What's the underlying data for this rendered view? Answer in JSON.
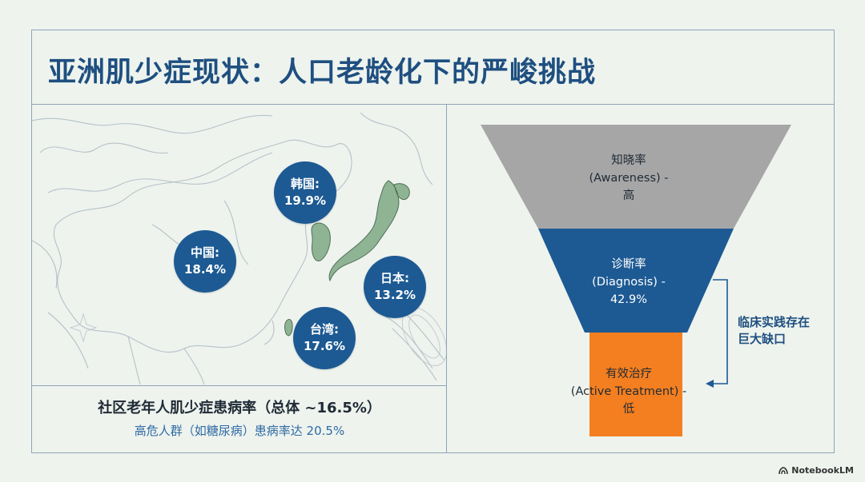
{
  "title": "亚洲肌少症现状：人口老龄化下的严峻挑战",
  "map": {
    "regions": [
      {
        "name": "韩国:",
        "value": "19.9%"
      },
      {
        "name": "中国:",
        "value": "18.4%"
      },
      {
        "name": "日本:",
        "value": "13.2%"
      },
      {
        "name": "台湾:",
        "value": "17.6%"
      }
    ],
    "caption_main": "社区老年人肌少症患病率（总体 ~16.5%）",
    "caption_sub": "高危人群（如糖尿病）患病率达 20.5%"
  },
  "funnel": {
    "stages": [
      {
        "label": "知晓率",
        "sub": "(Awareness) -",
        "level": "高",
        "color": "#a6a6a6"
      },
      {
        "label": "诊断率",
        "sub": "(Diagnosis) -",
        "level": "42.9%",
        "color": "#1d5a93"
      },
      {
        "label": "有效治疗",
        "sub": "(Active Treatment) -",
        "level": "低",
        "color": "#f47f20"
      }
    ],
    "gap_label_line1": "临床实践存在",
    "gap_label_line2": "巨大缺口"
  },
  "watermark": "NotebookLM",
  "colors": {
    "title": "#1e4f80",
    "bubble": "#1d5a93",
    "japan_korea_land": "#8fb493"
  }
}
